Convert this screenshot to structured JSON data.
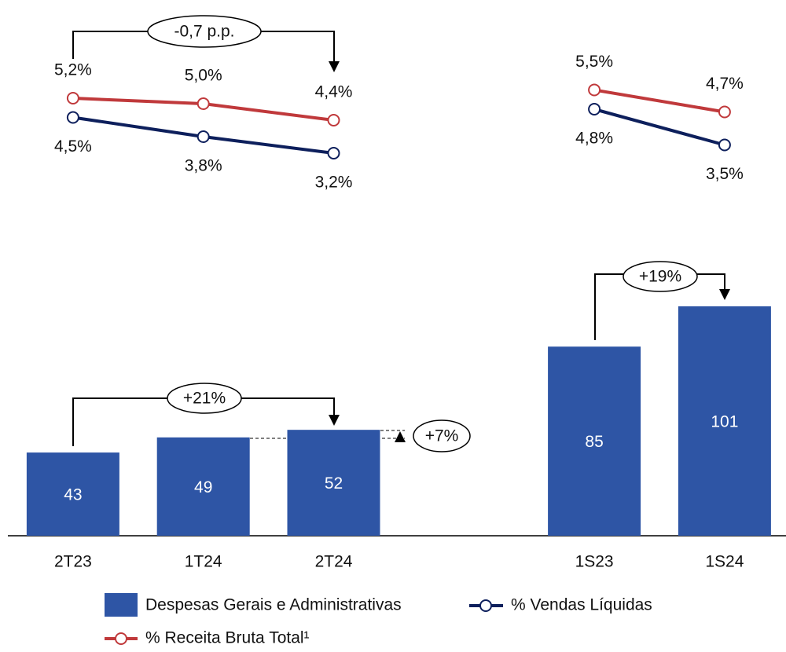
{
  "chart_data": {
    "type": "bar",
    "categories": [
      "2T23",
      "1T24",
      "2T24",
      null,
      "1S23",
      "1S24"
    ],
    "ylim": [
      10,
      110
    ],
    "y2lim": [
      0,
      8
    ],
    "series": [
      {
        "name": "Despesas Gerais e Administrativas",
        "type": "bar",
        "color": "#2e55a5",
        "values": [
          43,
          49,
          52,
          null,
          85,
          101
        ]
      },
      {
        "name": "% Vendas Líquidas",
        "type": "line",
        "axis": "y2",
        "color": "#0d1f5c",
        "label_side": "below",
        "values": [
          4.5,
          3.8,
          3.2,
          null,
          4.8,
          3.5
        ],
        "value_labels": [
          "4,5%",
          "3,8%",
          "3,2%",
          null,
          "4,8%",
          "3,5%"
        ]
      },
      {
        "name": "% Receita Bruta Total¹",
        "type": "line",
        "axis": "y2",
        "color": "#c0393b",
        "label_side": "above",
        "values": [
          5.2,
          5.0,
          4.4,
          null,
          5.5,
          4.7
        ],
        "value_labels": [
          "5,2%",
          "5,0%",
          "4,4%",
          null,
          "5,5%",
          "4,7%"
        ]
      }
    ],
    "annotations": [
      "-0,7 p.p.",
      "+21%",
      "+7%",
      "+19%"
    ]
  }
}
